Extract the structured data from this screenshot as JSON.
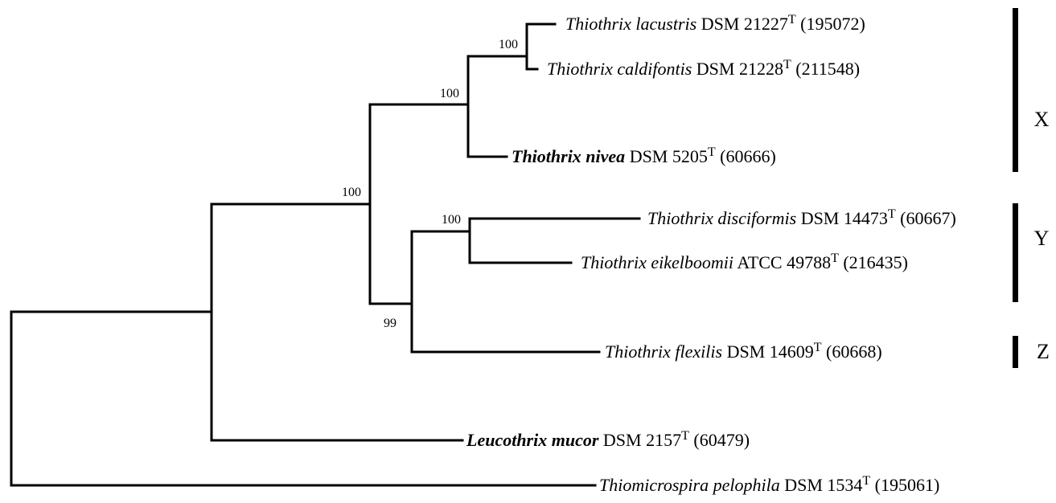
{
  "leaves": [
    {
      "name": "Thiothrix lacustris",
      "strain": "DSM 21227",
      "type_mark": "T",
      "accession": "(195072)",
      "bold": false
    },
    {
      "name": "Thiothrix caldifontis",
      "strain": "DSM 21228",
      "type_mark": "T",
      "accession": "(211548)",
      "bold": false
    },
    {
      "name": "Thiothrix nivea",
      "strain": "DSM 5205",
      "type_mark": "T",
      "accession": "(60666)",
      "bold": true
    },
    {
      "name": "Thiothrix disciformis",
      "strain": "DSM 14473",
      "type_mark": "T",
      "accession": "(60667)",
      "bold": false
    },
    {
      "name": "Thiothrix eikelboomii",
      "strain": "ATCC 49788",
      "type_mark": "T",
      "accession": "(216435)",
      "bold": false
    },
    {
      "name": "Thiothrix flexilis",
      "strain": "DSM 14609",
      "type_mark": "T",
      "accession": "(60668)",
      "bold": false
    },
    {
      "name": "Leucothrix mucor",
      "strain": "DSM 2157",
      "type_mark": "T",
      "accession": "(60479)",
      "bold": true
    },
    {
      "name": "Thiomicrospira pelophila",
      "strain": "DSM 1534",
      "type_mark": "T",
      "accession": "(195061)",
      "bold": false
    }
  ],
  "supports": [
    "100",
    "100",
    "100",
    "99",
    "100"
  ],
  "clades": [
    "X",
    "Y",
    "Z"
  ]
}
